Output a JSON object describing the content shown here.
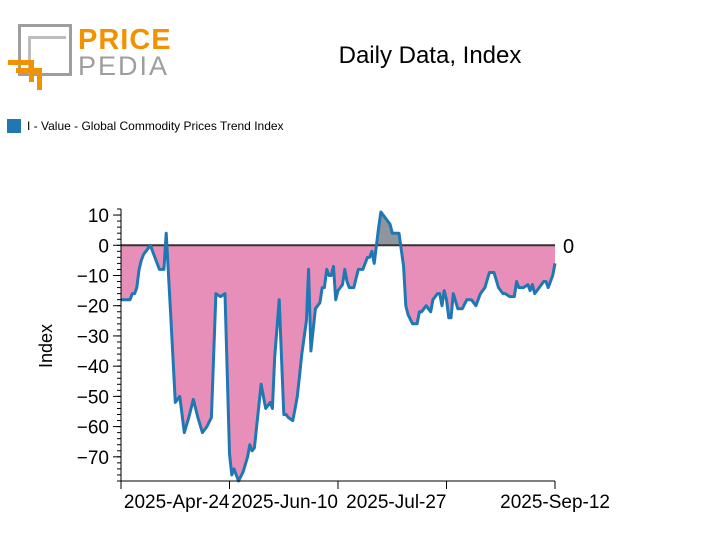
{
  "logo": {
    "line1": "PRICE",
    "line2": "PEDIA"
  },
  "title": "Daily Data, Index",
  "legend": {
    "label": "I - Value - Global Commodity Prices Trend Index",
    "color": "#1f77b4"
  },
  "colors": {
    "line": "#1f77b4",
    "fill_negative": "#e88fb9",
    "fill_positive": "#8e959c",
    "zero_line": "#333333"
  },
  "chart_data": {
    "type": "area",
    "ylabel": "Index",
    "xlabel": "",
    "ylim": [
      -78,
      12
    ],
    "yticks": [
      10,
      0,
      -10,
      -20,
      -30,
      -40,
      -50,
      -60,
      -70
    ],
    "xlim": [
      "2025-03-04",
      "2025-09-12"
    ],
    "xtick_labels": [
      "2025-Apr-24",
      "2025-Jun-10",
      "2025-Jul-27",
      "2025-Sep-12"
    ],
    "zero_label": "0",
    "series": [
      {
        "name": "I - Value - Global Commodity Prices Trend Index",
        "x": [
          "2025-03-04",
          "2025-03-05",
          "2025-03-06",
          "2025-03-07",
          "2025-03-08",
          "2025-03-09",
          "2025-03-10",
          "2025-03-11",
          "2025-03-12",
          "2025-03-13",
          "2025-03-14",
          "2025-03-15",
          "2025-03-17",
          "2025-03-19",
          "2025-03-21",
          "2025-03-23",
          "2025-03-24",
          "2025-03-26",
          "2025-03-28",
          "2025-03-30",
          "2025-04-01",
          "2025-04-03",
          "2025-04-05",
          "2025-04-07",
          "2025-04-09",
          "2025-04-11",
          "2025-04-13",
          "2025-04-15",
          "2025-04-17",
          "2025-04-19",
          "2025-04-21",
          "2025-04-22",
          "2025-04-23",
          "2025-04-24",
          "2025-04-25",
          "2025-04-27",
          "2025-04-29",
          "2025-04-30",
          "2025-05-01",
          "2025-05-02",
          "2025-05-03",
          "2025-05-04",
          "2025-05-05",
          "2025-05-07",
          "2025-05-09",
          "2025-05-10",
          "2025-05-11",
          "2025-05-13",
          "2025-05-15",
          "2025-05-16",
          "2025-05-17",
          "2025-05-19",
          "2025-05-20",
          "2025-05-21",
          "2025-05-22",
          "2025-05-23",
          "2025-05-25",
          "2025-05-26",
          "2025-05-27",
          "2025-05-29",
          "2025-05-31",
          "2025-06-01",
          "2025-06-02",
          "2025-06-03",
          "2025-06-04",
          "2025-06-05",
          "2025-06-06",
          "2025-06-07",
          "2025-06-08",
          "2025-06-10",
          "2025-06-11",
          "2025-06-12",
          "2025-06-13",
          "2025-06-15",
          "2025-06-17",
          "2025-06-19",
          "2025-06-21",
          "2025-06-22",
          "2025-06-23",
          "2025-06-24",
          "2025-06-26",
          "2025-06-27",
          "2025-06-29",
          "2025-07-01",
          "2025-07-02",
          "2025-07-03",
          "2025-07-05",
          "2025-07-07",
          "2025-07-08",
          "2025-07-09",
          "2025-07-11",
          "2025-07-13",
          "2025-07-14",
          "2025-07-15",
          "2025-07-17",
          "2025-07-19",
          "2025-07-20",
          "2025-07-22",
          "2025-07-23",
          "2025-07-24",
          "2025-07-25",
          "2025-07-26",
          "2025-07-27",
          "2025-07-28",
          "2025-07-29",
          "2025-07-31",
          "2025-08-02",
          "2025-08-04",
          "2025-08-06",
          "2025-08-08",
          "2025-08-10",
          "2025-08-12",
          "2025-08-14",
          "2025-08-16",
          "2025-08-18",
          "2025-08-20",
          "2025-08-21",
          "2025-08-23",
          "2025-08-25",
          "2025-08-26",
          "2025-08-27",
          "2025-08-29",
          "2025-08-31",
          "2025-09-01",
          "2025-09-02",
          "2025-09-03",
          "2025-09-05",
          "2025-09-07",
          "2025-09-08",
          "2025-09-09",
          "2025-09-10",
          "2025-09-11",
          "2025-09-12"
        ],
        "values": [
          -18,
          -18,
          -18,
          -18,
          -18,
          -16,
          -16,
          -14,
          -8,
          -5,
          -3,
          -2,
          0,
          -4,
          -8,
          -8,
          4,
          -23,
          -52,
          -50,
          -62,
          -57,
          -51,
          -57,
          -62,
          -60,
          -57,
          -16,
          -17,
          -16,
          -69,
          -76,
          -74,
          -76,
          -78,
          -75,
          -70,
          -66,
          -68,
          -67,
          -60,
          -53,
          -46,
          -54,
          -52,
          -54,
          -37,
          -18,
          -56,
          -56,
          -57,
          -58,
          -54,
          -50,
          -43,
          -36,
          -25,
          -8,
          -35,
          -21,
          -19,
          -14,
          -14,
          -8,
          -10,
          -10,
          -7,
          -18,
          -15,
          -13,
          -8,
          -12,
          -14,
          -14,
          -8,
          -8,
          -4,
          -4,
          -2,
          -6,
          6,
          11,
          9,
          7,
          4,
          4,
          4,
          -7,
          -20,
          -23,
          -26,
          -26,
          -22,
          -22,
          -20,
          -22,
          -18,
          -16,
          -16,
          -20,
          -15,
          -18,
          -24,
          -24,
          -16,
          -21,
          -21,
          -18,
          -18,
          -20,
          -16,
          -14,
          -9,
          -9,
          -14,
          -16,
          -16,
          -17,
          -17,
          -12,
          -14,
          -14,
          -13,
          -15,
          -13,
          -16,
          -14,
          -12,
          -12,
          -14,
          -12,
          -10,
          -6
        ]
      }
    ]
  }
}
